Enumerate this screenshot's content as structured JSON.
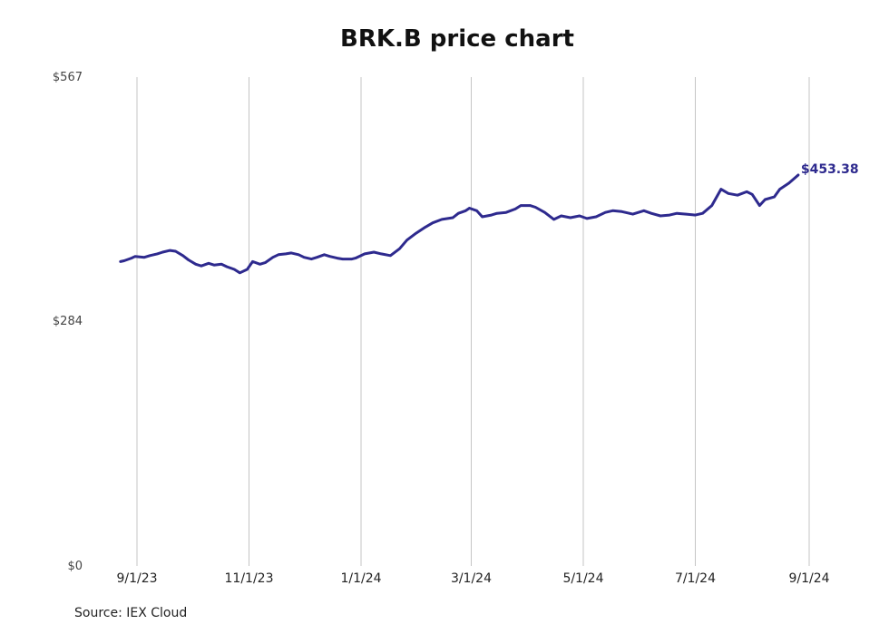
{
  "chart_data": {
    "type": "line",
    "title": "BRK.B price chart",
    "source": "Source: IEX Cloud",
    "ylim": [
      0,
      567
    ],
    "y_ticks": [
      {
        "value": 0,
        "label": "$0"
      },
      {
        "value": 284,
        "label": "$284"
      },
      {
        "value": 567,
        "label": "$567"
      }
    ],
    "x_ticks": [
      {
        "date": "2023-09-01",
        "label": "9/1/23"
      },
      {
        "date": "2023-11-01",
        "label": "11/1/23"
      },
      {
        "date": "2024-01-01",
        "label": "1/1/24"
      },
      {
        "date": "2024-03-01",
        "label": "3/1/24"
      },
      {
        "date": "2024-05-01",
        "label": "5/1/24"
      },
      {
        "date": "2024-07-01",
        "label": "7/1/24"
      },
      {
        "date": "2024-09-01",
        "label": "9/1/24"
      }
    ],
    "grid": "vertical",
    "series": [
      {
        "color": "#2e2a8e",
        "last_label": "$453.38",
        "points": [
          [
            "2023-08-23",
            353
          ],
          [
            "2023-08-25",
            354
          ],
          [
            "2023-08-29",
            357
          ],
          [
            "2023-08-31",
            359
          ],
          [
            "2023-09-05",
            358
          ],
          [
            "2023-09-08",
            360
          ],
          [
            "2023-09-12",
            362
          ],
          [
            "2023-09-15",
            364
          ],
          [
            "2023-09-19",
            366
          ],
          [
            "2023-09-22",
            365
          ],
          [
            "2023-09-26",
            360
          ],
          [
            "2023-09-29",
            355
          ],
          [
            "2023-10-03",
            350
          ],
          [
            "2023-10-06",
            348
          ],
          [
            "2023-10-10",
            351
          ],
          [
            "2023-10-13",
            349
          ],
          [
            "2023-10-17",
            350
          ],
          [
            "2023-10-20",
            347
          ],
          [
            "2023-10-24",
            344
          ],
          [
            "2023-10-27",
            340
          ],
          [
            "2023-10-31",
            344
          ],
          [
            "2023-11-03",
            353
          ],
          [
            "2023-11-07",
            350
          ],
          [
            "2023-11-10",
            352
          ],
          [
            "2023-11-14",
            358
          ],
          [
            "2023-11-17",
            361
          ],
          [
            "2023-11-21",
            362
          ],
          [
            "2023-11-24",
            363
          ],
          [
            "2023-11-28",
            361
          ],
          [
            "2023-12-01",
            358
          ],
          [
            "2023-12-05",
            356
          ],
          [
            "2023-12-08",
            358
          ],
          [
            "2023-12-12",
            361
          ],
          [
            "2023-12-15",
            359
          ],
          [
            "2023-12-19",
            357
          ],
          [
            "2023-12-22",
            356
          ],
          [
            "2023-12-27",
            356
          ],
          [
            "2023-12-29",
            357
          ],
          [
            "2024-01-03",
            362
          ],
          [
            "2024-01-08",
            364
          ],
          [
            "2024-01-12",
            362
          ],
          [
            "2024-01-17",
            360
          ],
          [
            "2024-01-22",
            368
          ],
          [
            "2024-01-26",
            378
          ],
          [
            "2024-01-31",
            386
          ],
          [
            "2024-02-05",
            393
          ],
          [
            "2024-02-09",
            398
          ],
          [
            "2024-02-14",
            402
          ],
          [
            "2024-02-20",
            404
          ],
          [
            "2024-02-23",
            409
          ],
          [
            "2024-02-27",
            412
          ],
          [
            "2024-02-29",
            415
          ],
          [
            "2024-03-04",
            412
          ],
          [
            "2024-03-07",
            405
          ],
          [
            "2024-03-12",
            407
          ],
          [
            "2024-03-15",
            409
          ],
          [
            "2024-03-20",
            410
          ],
          [
            "2024-03-25",
            414
          ],
          [
            "2024-03-28",
            418
          ],
          [
            "2024-04-02",
            418
          ],
          [
            "2024-04-05",
            416
          ],
          [
            "2024-04-10",
            410
          ],
          [
            "2024-04-15",
            402
          ],
          [
            "2024-04-19",
            406
          ],
          [
            "2024-04-24",
            404
          ],
          [
            "2024-04-29",
            406
          ],
          [
            "2024-05-03",
            403
          ],
          [
            "2024-05-08",
            405
          ],
          [
            "2024-05-13",
            410
          ],
          [
            "2024-05-17",
            412
          ],
          [
            "2024-05-22",
            411
          ],
          [
            "2024-05-28",
            408
          ],
          [
            "2024-06-03",
            412
          ],
          [
            "2024-06-07",
            409
          ],
          [
            "2024-06-12",
            406
          ],
          [
            "2024-06-17",
            407
          ],
          [
            "2024-06-21",
            409
          ],
          [
            "2024-06-26",
            408
          ],
          [
            "2024-07-01",
            407
          ],
          [
            "2024-07-05",
            409
          ],
          [
            "2024-07-10",
            418
          ],
          [
            "2024-07-15",
            437
          ],
          [
            "2024-07-19",
            432
          ],
          [
            "2024-07-24",
            430
          ],
          [
            "2024-07-29",
            434
          ],
          [
            "2024-08-01",
            431
          ],
          [
            "2024-08-05",
            418
          ],
          [
            "2024-08-08",
            425
          ],
          [
            "2024-08-13",
            428
          ],
          [
            "2024-08-16",
            437
          ],
          [
            "2024-08-21",
            444
          ],
          [
            "2024-08-26",
            453.38
          ]
        ]
      }
    ]
  }
}
